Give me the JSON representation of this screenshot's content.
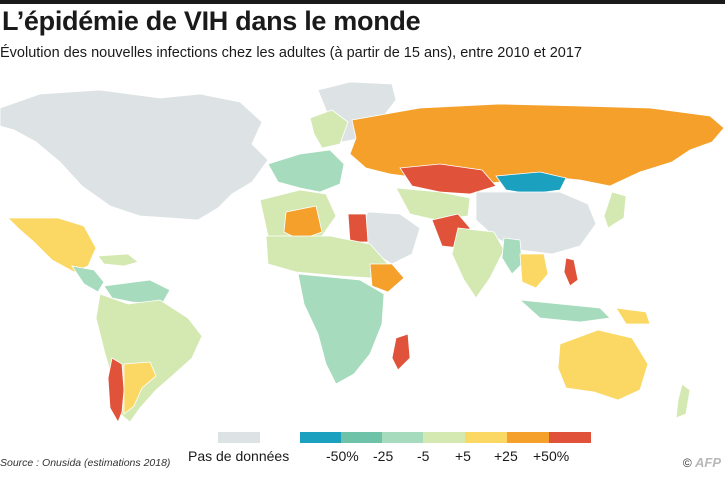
{
  "title": "L’épidémie de VIH dans le monde",
  "subtitle": "Évolution des nouvelles infections chez les adultes (à partir de 15 ans), entre 2010 et 2017",
  "colors": {
    "no_data": "#dde2e4",
    "ocean": "#ffffff",
    "border": "#ffffff",
    "classes": [
      "#1ba0bf",
      "#6ec2a8",
      "#a6dbbd",
      "#d4e9b2",
      "#fbd764",
      "#f4a02a",
      "#e0533a"
    ]
  },
  "legend": {
    "no_data_label": "Pas de données",
    "tick_labels": [
      "-50%",
      "-25",
      "-5",
      "+5",
      "+25",
      "+50%"
    ]
  },
  "source": "Source : Onusida (estimations 2018)",
  "credit": {
    "symbol": "©",
    "agency": "AFP"
  }
}
